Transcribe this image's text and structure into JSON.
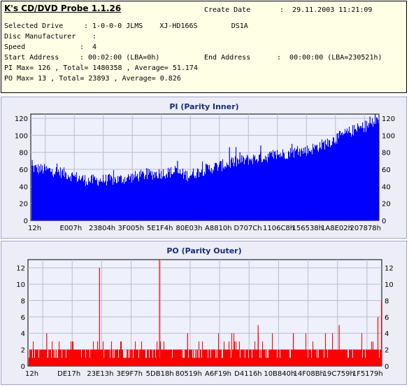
{
  "header": {
    "app_title": "K's CD/DVD Probe 1.1.26",
    "create_date_label": "Create Date",
    "create_date_value": ":  29.11.2003 11:21:09",
    "drive_label": "Selected Drive",
    "drive_value": ": 1-0-0-0 JLMS    XJ-HD166S        DS1A",
    "manufacturer_label": "Disc Manufacturer",
    "manufacturer_value": ":",
    "speed_label": "Speed",
    "speed_value": ":  4",
    "start_label": "Start Address",
    "start_value": ": 00:02:00 (LBA=0h)",
    "end_label": "End Address",
    "end_value": ":  00:00:00 (LBA=230521h)",
    "pi_summary": "PI Max= 126 , Total= 1480358 , Average= 51.174",
    "po_summary": "PO Max= 13 , Total= 23893 , Average= 0.826"
  },
  "colors": {
    "pi_bar": "#0000ff",
    "po_bar": "#ff0000",
    "title": "#1a2a7a",
    "plot_bg": "#eef0fb"
  },
  "chart_data": [
    {
      "type": "bar",
      "title": "PI (Parity Inner)",
      "xlabel": "",
      "ylabel": "",
      "ylim": [
        0,
        125
      ],
      "yticks": [
        0,
        20,
        40,
        60,
        80,
        100,
        120
      ],
      "x_ticks": [
        "12h",
        "E007h",
        "23804h",
        "3F005h",
        "5E1F4h",
        "80E03h",
        "A8810h",
        "D707Ch",
        "1106C8h",
        "156538h",
        "1A8E02h",
        "207878h"
      ],
      "grid": true,
      "series": [
        {
          "color": "#0000ff",
          "profile": [
            [
              0,
              62
            ],
            [
              0.08,
              57
            ],
            [
              0.16,
              47
            ],
            [
              0.25,
              48
            ],
            [
              0.33,
              54
            ],
            [
              0.41,
              57
            ],
            [
              0.45,
              53
            ],
            [
              0.5,
              60
            ],
            [
              0.55,
              65
            ],
            [
              0.6,
              70
            ],
            [
              0.66,
              74
            ],
            [
              0.72,
              78
            ],
            [
              0.8,
              83
            ],
            [
              0.86,
              93
            ],
            [
              0.92,
              105
            ],
            [
              0.97,
              112
            ],
            [
              1,
              118
            ]
          ],
          "spikes": [
            [
              0.001,
              71
            ],
            [
              0.42,
              70
            ],
            [
              0.57,
              86
            ],
            [
              0.6,
              80
            ],
            [
              0.66,
              88
            ],
            [
              0.75,
              90
            ],
            [
              0.88,
              102
            ],
            [
              0.94,
              112
            ],
            [
              0.975,
              122
            ],
            [
              0.99,
              126
            ]
          ]
        }
      ]
    },
    {
      "type": "bar",
      "title": "PO (Parity Outer)",
      "xlabel": "",
      "ylabel": "",
      "ylim": [
        0,
        13
      ],
      "yticks": [
        0,
        2,
        4,
        6,
        8,
        10,
        12
      ],
      "x_ticks": [
        "12h",
        "DE17h",
        "23E13h",
        "3E9F7h",
        "5DB18h",
        "80519h",
        "A6F19h",
        "D4116h",
        "10B840h",
        "14F08Bh",
        "19C759h",
        "1F5179h"
      ],
      "grid": true,
      "series": [
        {
          "color": "#ff0000",
          "baseline": 2,
          "spikes": [
            [
              0.2,
              12
            ],
            [
              0.37,
              13
            ],
            [
              0.65,
              5
            ],
            [
              0.88,
              5
            ],
            [
              0.99,
              6
            ],
            [
              1,
              8
            ],
            [
              0.05,
              4
            ],
            [
              0.45,
              4
            ],
            [
              0.75,
              4
            ]
          ]
        }
      ]
    }
  ]
}
